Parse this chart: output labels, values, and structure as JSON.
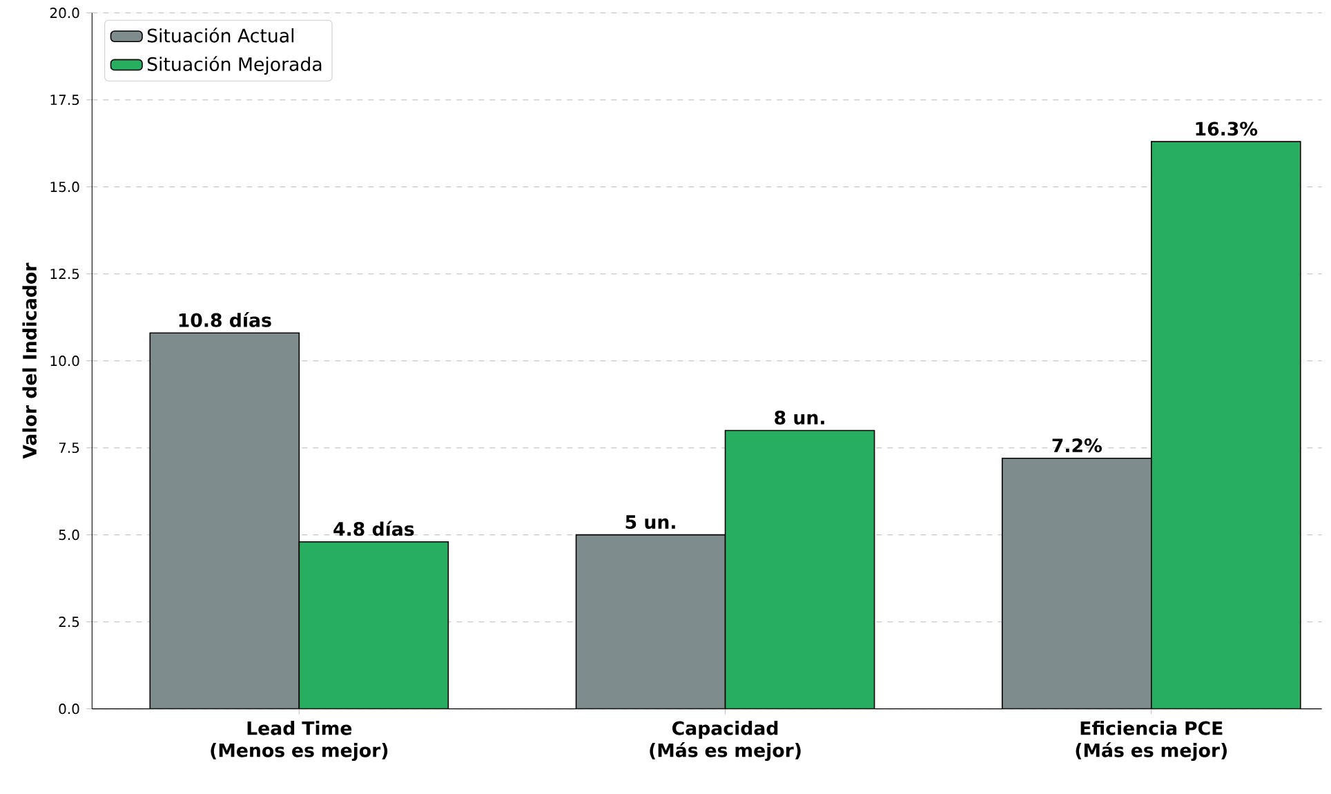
{
  "chart_data": {
    "type": "bar",
    "ylabel": "Valor del Indicador",
    "categories": [
      "Lead Time (Menos es mejor)",
      "Capacidad (Más es mejor)",
      "Eficiencia PCE (Más es mejor)"
    ],
    "series": [
      {
        "name": "Situación Actual",
        "color": "#7f8c8d",
        "values": [
          10.8,
          5,
          7.2
        ],
        "value_labels": [
          "10.8 días",
          "5 un.",
          "7.2%"
        ]
      },
      {
        "name": "Situación Mejorada",
        "color": "#27ae60",
        "values": [
          4.8,
          8,
          16.3
        ],
        "value_labels": [
          "4.8 días",
          "8 un.",
          "16.3%"
        ]
      }
    ],
    "ylim": [
      0,
      20
    ],
    "yticks": [
      {
        "value": 0,
        "label": "0.0"
      },
      2.5,
      {
        "value": 5,
        "label": "5.0"
      },
      7.5,
      {
        "value": 10,
        "label": "10.0"
      },
      12.5,
      {
        "value": 15,
        "label": "15.0"
      },
      17.5,
      {
        "value": 20,
        "label": "20.0"
      }
    ],
    "grid": "y",
    "legend": "top left"
  }
}
